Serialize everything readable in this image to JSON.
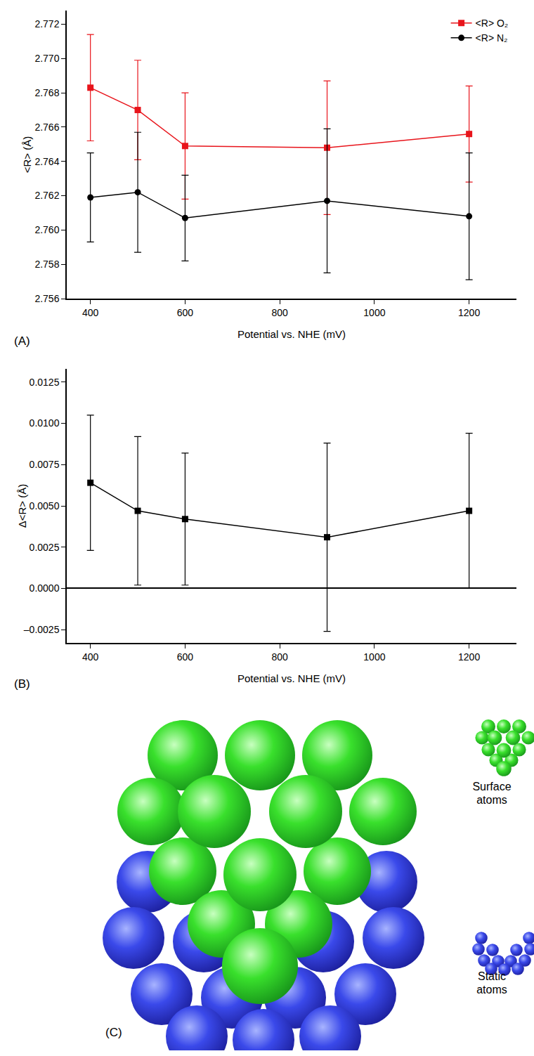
{
  "chart_data": [
    {
      "type": "line",
      "panel": "(A)",
      "x_label": "Potential vs. NHE (mV)",
      "y_label": "<R> (Å)",
      "x": [
        400,
        500,
        600,
        900,
        1200
      ],
      "series": [
        {
          "name": "<R> O₂",
          "color": "#e8141b",
          "marker": "square",
          "values": [
            2.7683,
            2.767,
            2.7649,
            2.7648,
            2.7656
          ],
          "error": [
            0.0031,
            0.0029,
            0.0031,
            0.0039,
            0.0028
          ]
        },
        {
          "name": "<R> N₂",
          "color": "#000000",
          "marker": "circle",
          "values": [
            2.7619,
            2.7622,
            2.7607,
            2.7617,
            2.7608
          ],
          "error": [
            0.0026,
            0.0035,
            0.0025,
            0.0042,
            0.0037
          ]
        }
      ],
      "xlim": [
        350,
        1300
      ],
      "xticks": [
        400,
        600,
        800,
        1000,
        1200
      ],
      "ylim": [
        2.756,
        2.7728
      ],
      "yticks": [
        2.756,
        2.758,
        {
          "value": 2.76,
          "label": "2.760"
        },
        2.762,
        2.764,
        2.766,
        2.768,
        {
          "value": 2.77,
          "label": "2.770"
        },
        2.772
      ],
      "legend": "top-right",
      "grid": false
    },
    {
      "type": "line",
      "panel": "(B)",
      "x_label": "Potential vs. NHE (mV)",
      "y_label": "Δ<R> (Å)",
      "x": [
        400,
        500,
        600,
        900,
        1200
      ],
      "series": [
        {
          "color": "#000000",
          "marker": "square",
          "values": [
            0.0064,
            0.0047,
            0.0042,
            0.0031,
            0.0047
          ],
          "error": [
            0.0041,
            0.0045,
            0.004,
            0.0057,
            0.0047
          ]
        }
      ],
      "xlim": [
        350,
        1300
      ],
      "xticks": [
        400,
        600,
        800,
        1000,
        1200
      ],
      "ylim": [
        -0.0033,
        0.0133
      ],
      "yticks": [
        {
          "value": -0.0025,
          "label": "–0.0025"
        },
        {
          "value": 0,
          "label": "0.0000"
        },
        0.0025,
        {
          "value": 0.005,
          "label": "0.0050"
        },
        0.0075,
        {
          "value": 0.01,
          "label": "0.0100"
        },
        0.0125
      ],
      "grid": false
    }
  ],
  "diagram": {
    "panel": "(C)",
    "labels": [
      "Surface atoms",
      "Static atoms"
    ]
  }
}
